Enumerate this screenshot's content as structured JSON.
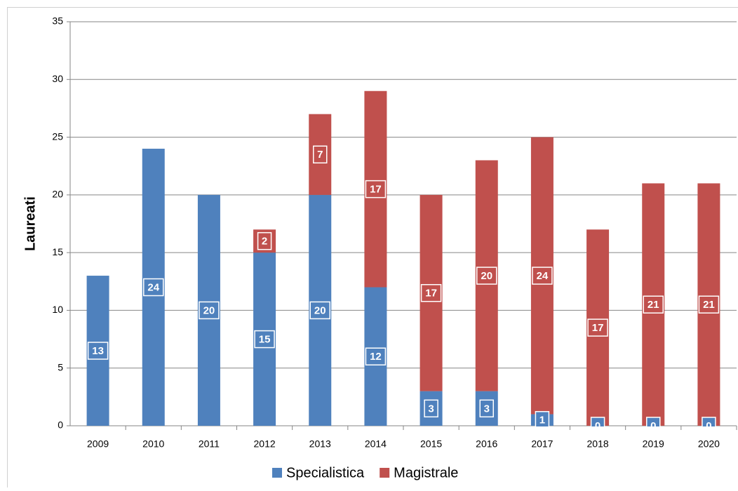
{
  "chart_data": {
    "type": "stacked_bar",
    "y_label": "Laureati",
    "categories": [
      "2009",
      "2010",
      "2011",
      "2012",
      "2013",
      "2014",
      "2015",
      "2016",
      "2017",
      "2018",
      "2019",
      "2020"
    ],
    "series": [
      {
        "name": "Specialistica",
        "color": "#4f81bd",
        "values": [
          13,
          24,
          20,
          15,
          20,
          12,
          3,
          3,
          1,
          0,
          0,
          0
        ]
      },
      {
        "name": "Magistrale",
        "color": "#c0504d",
        "values": [
          null,
          null,
          null,
          2,
          7,
          17,
          17,
          20,
          24,
          17,
          21,
          21
        ]
      }
    ],
    "ylim": [
      0,
      35
    ],
    "yticks": [
      0,
      5,
      10,
      15,
      20,
      25,
      30,
      35
    ],
    "grid": true,
    "legend": "bottom"
  }
}
